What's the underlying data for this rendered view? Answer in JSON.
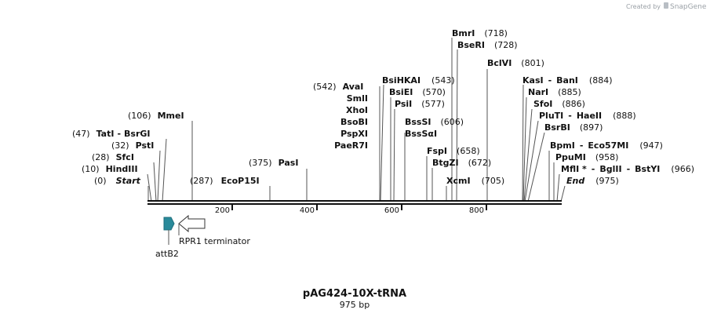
{
  "credit": {
    "prefix": "Created by",
    "brand": "SnapGene"
  },
  "plasmid": {
    "name": "pAG424-10X-tRNA",
    "length_text": "975 bp"
  },
  "axis": {
    "ticks": [
      "200",
      "400",
      "600",
      "800"
    ]
  },
  "features": [
    {
      "name": "attB2"
    },
    {
      "name": "RPR1 terminator"
    }
  ],
  "sites": [
    {
      "id": "start",
      "parts": [
        "Start"
      ],
      "pos": "(0)",
      "italic": true
    },
    {
      "id": "hindiii",
      "parts": [
        "HindIII"
      ],
      "pos": "(10)"
    },
    {
      "id": "sfci",
      "parts": [
        "SfcI"
      ],
      "pos": "(28)"
    },
    {
      "id": "psti",
      "parts": [
        "PstI"
      ],
      "pos": "(32)"
    },
    {
      "id": "tati",
      "parts": [
        "TatI",
        "BsrGI"
      ],
      "pos": "(47)"
    },
    {
      "id": "mmei",
      "parts": [
        "MmeI"
      ],
      "pos": "(106)"
    },
    {
      "id": "ecop15i",
      "parts": [
        "EcoP15I"
      ],
      "pos": "(287)"
    },
    {
      "id": "pasi",
      "parts": [
        "PasI"
      ],
      "pos": "(375)"
    },
    {
      "id": "avai",
      "parts": [
        "AvaI"
      ],
      "pos": "(542)"
    },
    {
      "id": "smli",
      "parts": [
        "SmlI"
      ],
      "pos": ""
    },
    {
      "id": "xhoi",
      "parts": [
        "XhoI"
      ],
      "pos": ""
    },
    {
      "id": "bsobi",
      "parts": [
        "BsoBI"
      ],
      "pos": ""
    },
    {
      "id": "pspxi",
      "parts": [
        "PspXI"
      ],
      "pos": ""
    },
    {
      "id": "paer7i",
      "parts": [
        "PaeR7I"
      ],
      "pos": ""
    },
    {
      "id": "bsihkai",
      "parts": [
        "BsiHKAI"
      ],
      "pos": "(543)"
    },
    {
      "id": "bsiei",
      "parts": [
        "BsiEI"
      ],
      "pos": "(570)"
    },
    {
      "id": "psii",
      "parts": [
        "PsiI"
      ],
      "pos": "(577)"
    },
    {
      "id": "bsssi",
      "parts": [
        "BssSI"
      ],
      "pos": "(606)"
    },
    {
      "id": "bsssai",
      "parts": [
        "BssSαI"
      ],
      "pos": ""
    },
    {
      "id": "fspi",
      "parts": [
        "FspI"
      ],
      "pos": "(658)"
    },
    {
      "id": "btgzi",
      "parts": [
        "BtgZI"
      ],
      "pos": "(672)"
    },
    {
      "id": "xcmi",
      "parts": [
        "XcmI"
      ],
      "pos": "(705)"
    },
    {
      "id": "bmri",
      "parts": [
        "BmrI"
      ],
      "pos": "(718)"
    },
    {
      "id": "bseri",
      "parts": [
        "BseRI"
      ],
      "pos": "(728)"
    },
    {
      "id": "bclvi",
      "parts": [
        "BclVI"
      ],
      "pos": "(801)"
    },
    {
      "id": "kasi",
      "parts": [
        "KasI",
        "BanI"
      ],
      "pos": "(884)"
    },
    {
      "id": "nari",
      "parts": [
        "NarI"
      ],
      "pos": "(885)"
    },
    {
      "id": "sfoi",
      "parts": [
        "SfoI"
      ],
      "pos": "(886)"
    },
    {
      "id": "pluti",
      "parts": [
        "PluTI",
        "HaeII"
      ],
      "pos": "(888)"
    },
    {
      "id": "bsrbi",
      "parts": [
        "BsrBI"
      ],
      "pos": "(897)"
    },
    {
      "id": "bpmi",
      "parts": [
        "BpmI",
        "Eco57MI"
      ],
      "pos": "(947)"
    },
    {
      "id": "ppumi",
      "parts": [
        "PpuMI"
      ],
      "pos": "(958)"
    },
    {
      "id": "mfli",
      "parts": [
        "MflI *",
        "BglII",
        "BstYI"
      ],
      "pos": "(966)"
    },
    {
      "id": "end",
      "parts": [
        "End"
      ],
      "pos": "(975)",
      "italic": true
    }
  ]
}
